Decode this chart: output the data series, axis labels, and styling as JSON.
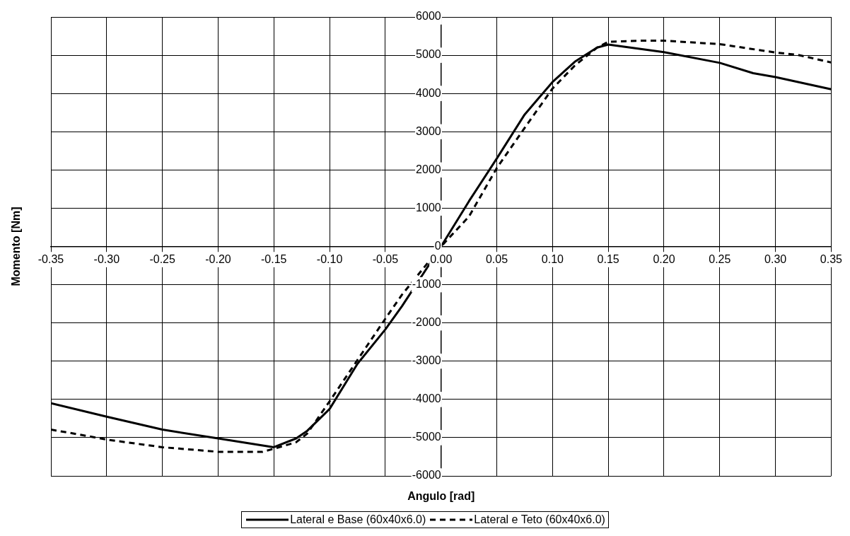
{
  "chart_data": {
    "type": "line",
    "xlabel": "Angulo [rad]",
    "ylabel": "Momento [Nm]",
    "xlim": [
      -0.35,
      0.35
    ],
    "xticks": [
      {
        "value": -0.35,
        "label": "-0.35"
      },
      {
        "value": -0.3,
        "label": "-0.30"
      },
      {
        "value": -0.25,
        "label": "-0.25"
      },
      {
        "value": -0.2,
        "label": "-0.20"
      },
      {
        "value": -0.15,
        "label": "-0.15"
      },
      {
        "value": -0.1,
        "label": "-0.10"
      },
      {
        "value": -0.05,
        "label": "-0.05"
      },
      {
        "value": 0,
        "label": "0.00"
      },
      {
        "value": 0.05,
        "label": "0.05"
      },
      {
        "value": 0.1,
        "label": "0.10"
      },
      {
        "value": 0.15,
        "label": "0.15"
      },
      {
        "value": 0.2,
        "label": "0.20"
      },
      {
        "value": 0.25,
        "label": "0.25"
      },
      {
        "value": 0.3,
        "label": "0.30"
      },
      {
        "value": 0.35,
        "label": "0.35"
      }
    ],
    "ylim": [
      -6000,
      6000
    ],
    "yticks": [
      -6000,
      -5000,
      -4000,
      -3000,
      -2000,
      -1000,
      0,
      1000,
      2000,
      3000,
      4000,
      5000,
      6000
    ],
    "grid": true,
    "legend": "bottom",
    "marker": "none",
    "series": [
      {
        "name": "Lateral e Base (60x40x6.0)",
        "color": "#000000",
        "line_style": "solid",
        "x": [
          -0.35,
          -0.3,
          -0.25,
          -0.2,
          -0.15,
          -0.13,
          -0.12,
          -0.1,
          -0.075,
          -0.05,
          -0.035,
          0,
          0.025,
          0.05,
          0.075,
          0.1,
          0.12,
          0.14,
          0.15,
          0.2,
          0.25,
          0.28,
          0.3,
          0.35
        ],
        "values": [
          -4100,
          -4450,
          -4790,
          -5020,
          -5250,
          -5020,
          -4820,
          -4250,
          -3070,
          -2170,
          -1560,
          0,
          1180,
          2300,
          3450,
          4300,
          4830,
          5200,
          5280,
          5080,
          4800,
          4530,
          4430,
          4110
        ]
      },
      {
        "name": "Lateral e Teto (60x40x6.0)",
        "color": "#000000",
        "line_style": "dashed",
        "x": [
          -0.35,
          -0.33,
          -0.3,
          -0.25,
          -0.2,
          -0.16,
          -0.15,
          -0.13,
          -0.12,
          -0.1,
          -0.05,
          -0.035,
          0,
          0.025,
          0.05,
          0.075,
          0.1,
          0.12,
          0.14,
          0.15,
          0.18,
          0.2,
          0.25,
          0.3,
          0.32,
          0.35
        ],
        "values": [
          -4790,
          -4890,
          -5050,
          -5250,
          -5370,
          -5370,
          -5290,
          -5120,
          -4890,
          -4050,
          -1890,
          -1260,
          0,
          780,
          2050,
          3100,
          4130,
          4730,
          5200,
          5350,
          5380,
          5380,
          5290,
          5070,
          5010,
          4810
        ]
      }
    ]
  }
}
